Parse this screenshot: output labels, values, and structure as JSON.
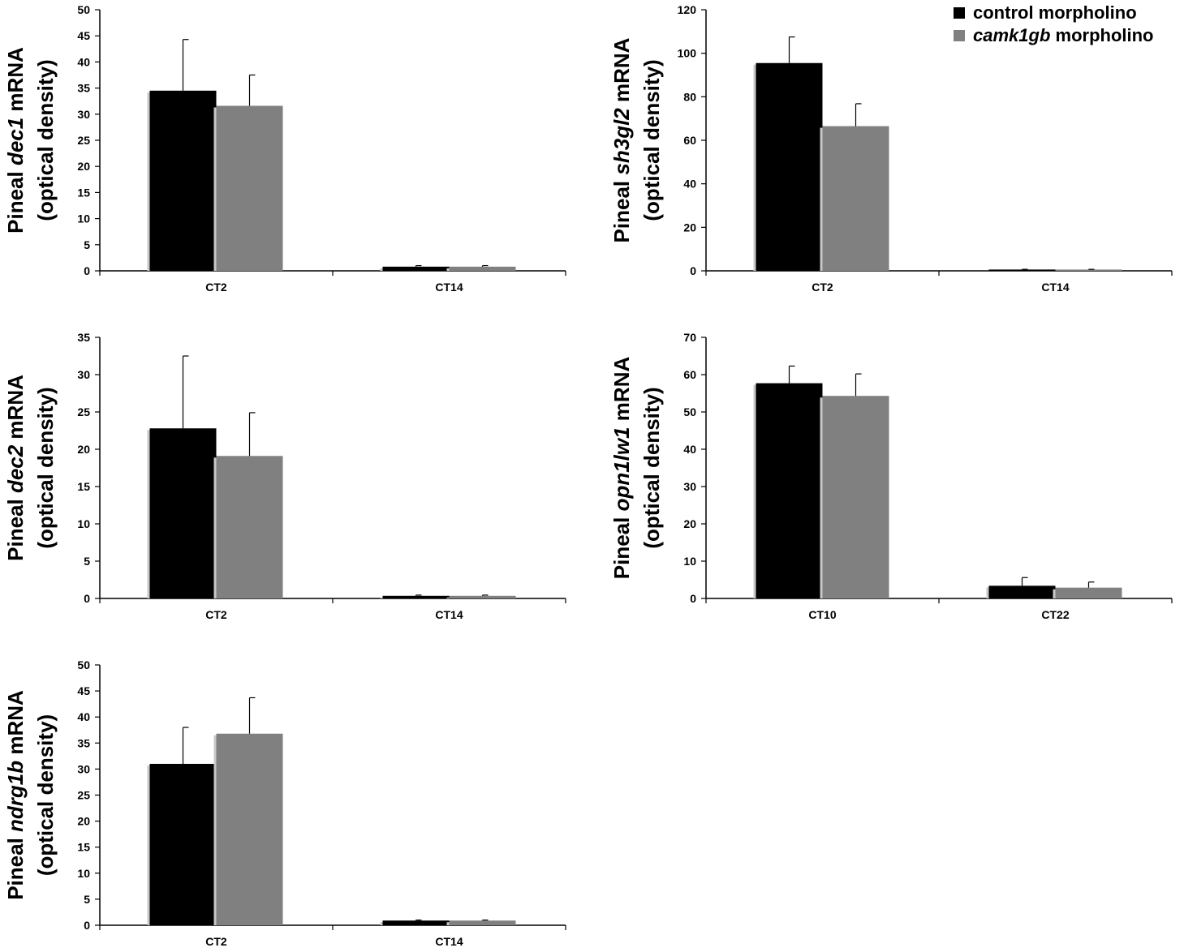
{
  "legend": {
    "position": "top-right",
    "items": [
      {
        "prefix": "control morpholino",
        "italic": "",
        "suffix": "",
        "color": "#000000"
      },
      {
        "prefix": "",
        "italic": "camk1gb",
        "suffix": " morpholino",
        "color": "#808080"
      }
    ]
  },
  "chart_data": [
    {
      "type": "bar",
      "ylabel": {
        "line1_prefix": "Pineal ",
        "line1_italic": "dec1",
        "line1_suffix": " mRNA",
        "line2": "(optical density)"
      },
      "categories": [
        "CT2",
        "CT14"
      ],
      "ylim": [
        0,
        50
      ],
      "yticks": [
        0,
        5,
        10,
        15,
        20,
        25,
        30,
        35,
        40,
        45,
        50
      ],
      "series": [
        {
          "name": "control morpholino",
          "color": "#000000",
          "values": [
            34.5,
            0.8
          ],
          "errors": [
            9.8,
            0.2
          ]
        },
        {
          "name": "camk1gb morpholino",
          "color": "#808080",
          "values": [
            31.6,
            0.8
          ],
          "errors": [
            5.9,
            0.2
          ]
        }
      ]
    },
    {
      "type": "bar",
      "ylabel": {
        "line1_prefix": "Pineal ",
        "line1_italic": "sh3gl2",
        "line1_suffix": " mRNA",
        "line2": "(optical density)"
      },
      "categories": [
        "CT2",
        "CT14"
      ],
      "ylim": [
        0,
        120
      ],
      "yticks": [
        0,
        20,
        40,
        60,
        80,
        100,
        120
      ],
      "series": [
        {
          "name": "control morpholino",
          "color": "#000000",
          "values": [
            95.5,
            0.6
          ],
          "errors": [
            12,
            0.1
          ]
        },
        {
          "name": "camk1gb morpholino",
          "color": "#808080",
          "values": [
            66.5,
            0.6
          ],
          "errors": [
            10.3,
            0.1
          ]
        }
      ]
    },
    {
      "type": "bar",
      "ylabel": {
        "line1_prefix": "Pineal ",
        "line1_italic": "dec2",
        "line1_suffix": " mRNA",
        "line2": "(optical density)"
      },
      "categories": [
        "CT2",
        "CT14"
      ],
      "ylim": [
        0,
        35
      ],
      "yticks": [
        0,
        5,
        10,
        15,
        20,
        25,
        30,
        35
      ],
      "series": [
        {
          "name": "control morpholino",
          "color": "#000000",
          "values": [
            22.8,
            0.35
          ],
          "errors": [
            9.7,
            0.1
          ]
        },
        {
          "name": "camk1gb morpholino",
          "color": "#808080",
          "values": [
            19.1,
            0.35
          ],
          "errors": [
            5.8,
            0.1
          ]
        }
      ]
    },
    {
      "type": "bar",
      "ylabel": {
        "line1_prefix": "Pineal ",
        "line1_italic": "opn1lw1",
        "line1_suffix": " mRNA",
        "line2": "(optical density)"
      },
      "categories": [
        "CT10",
        "CT22"
      ],
      "ylim": [
        0,
        70
      ],
      "yticks": [
        0,
        10,
        20,
        30,
        40,
        50,
        60,
        70
      ],
      "series": [
        {
          "name": "control morpholino",
          "color": "#000000",
          "values": [
            57.7,
            3.4
          ],
          "errors": [
            4.6,
            2.2
          ]
        },
        {
          "name": "camk1gb morpholino",
          "color": "#808080",
          "values": [
            54.3,
            2.9
          ],
          "errors": [
            5.9,
            1.5
          ]
        }
      ]
    },
    {
      "type": "bar",
      "ylabel": {
        "line1_prefix": "Pineal ",
        "line1_italic": "ndrg1b",
        "line1_suffix": " mRNA",
        "line2": "(optical density)"
      },
      "categories": [
        "CT2",
        "CT14"
      ],
      "ylim": [
        0,
        50
      ],
      "yticks": [
        0,
        5,
        10,
        15,
        20,
        25,
        30,
        35,
        40,
        45,
        50
      ],
      "series": [
        {
          "name": "control morpholino",
          "color": "#000000",
          "values": [
            31,
            0.9
          ],
          "errors": [
            7,
            0.1
          ]
        },
        {
          "name": "camk1gb morpholino",
          "color": "#808080",
          "values": [
            36.8,
            0.9
          ],
          "errors": [
            6.9,
            0.1
          ]
        }
      ]
    }
  ]
}
